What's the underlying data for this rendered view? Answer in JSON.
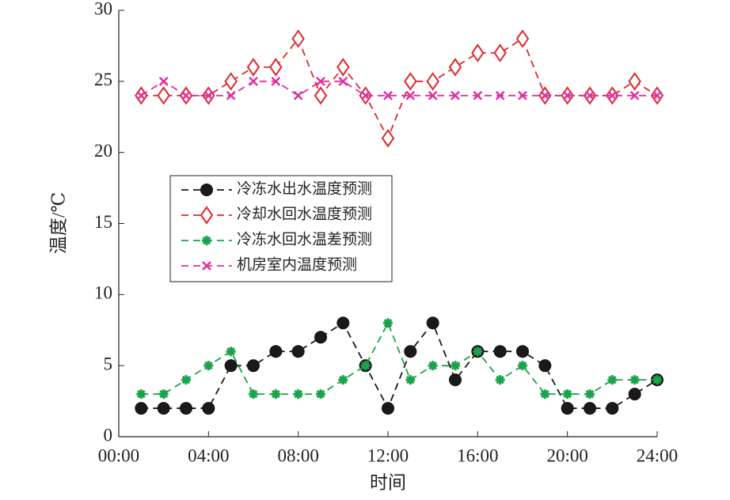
{
  "chart_data": {
    "type": "line",
    "xlabel": "时间",
    "ylabel": "温度/℃",
    "x": [
      1,
      2,
      3,
      4,
      5,
      6,
      7,
      8,
      9,
      10,
      11,
      12,
      13,
      14,
      15,
      16,
      17,
      18,
      19,
      20,
      21,
      22,
      23,
      24
    ],
    "series": [
      {
        "name": "冷冻水出水温度预测",
        "color": "#1a1a1a",
        "marker": "circle",
        "values": [
          2,
          2,
          2,
          2,
          5,
          5,
          6,
          6,
          7,
          8,
          5,
          2,
          6,
          8,
          4,
          6,
          6,
          6,
          5,
          2,
          2,
          2,
          3,
          4
        ]
      },
      {
        "name": "冷却水回水温度预测",
        "color": "#e0282e",
        "marker": "diamond",
        "values": [
          24,
          24,
          24,
          24,
          25,
          26,
          26,
          28,
          24,
          26,
          24,
          21,
          25,
          25,
          26,
          27,
          27,
          28,
          24,
          24,
          24,
          24,
          25,
          24
        ]
      },
      {
        "name": "冷冻水回水温差预测",
        "color": "#1aa34a",
        "marker": "star",
        "values": [
          3,
          3,
          4,
          5,
          6,
          3,
          3,
          3,
          3,
          4,
          5,
          8,
          4,
          5,
          5,
          6,
          4,
          5,
          3,
          3,
          3,
          4,
          4,
          4
        ]
      },
      {
        "name": "机房室内温度预测",
        "color": "#e0309e",
        "marker": "x",
        "values": [
          24,
          25,
          24,
          24,
          24,
          25,
          25,
          24,
          25,
          25,
          24,
          24,
          24,
          24,
          24,
          24,
          24,
          24,
          24,
          24,
          24,
          24,
          24,
          24
        ]
      }
    ],
    "xlim": [
      0,
      24
    ],
    "xticks": [
      {
        "value": 0,
        "label": "00:00"
      },
      {
        "value": 4,
        "label": "04:00"
      },
      {
        "value": 8,
        "label": "08:00"
      },
      {
        "value": 12,
        "label": "12:00"
      },
      {
        "value": 16,
        "label": "16:00"
      },
      {
        "value": 20,
        "label": "20:00"
      },
      {
        "value": 24,
        "label": "24:00"
      }
    ],
    "ylim": [
      0,
      30
    ],
    "yticks": [
      0,
      5,
      10,
      15,
      20,
      25,
      30
    ],
    "grid": false,
    "legend_position": "center-left"
  }
}
